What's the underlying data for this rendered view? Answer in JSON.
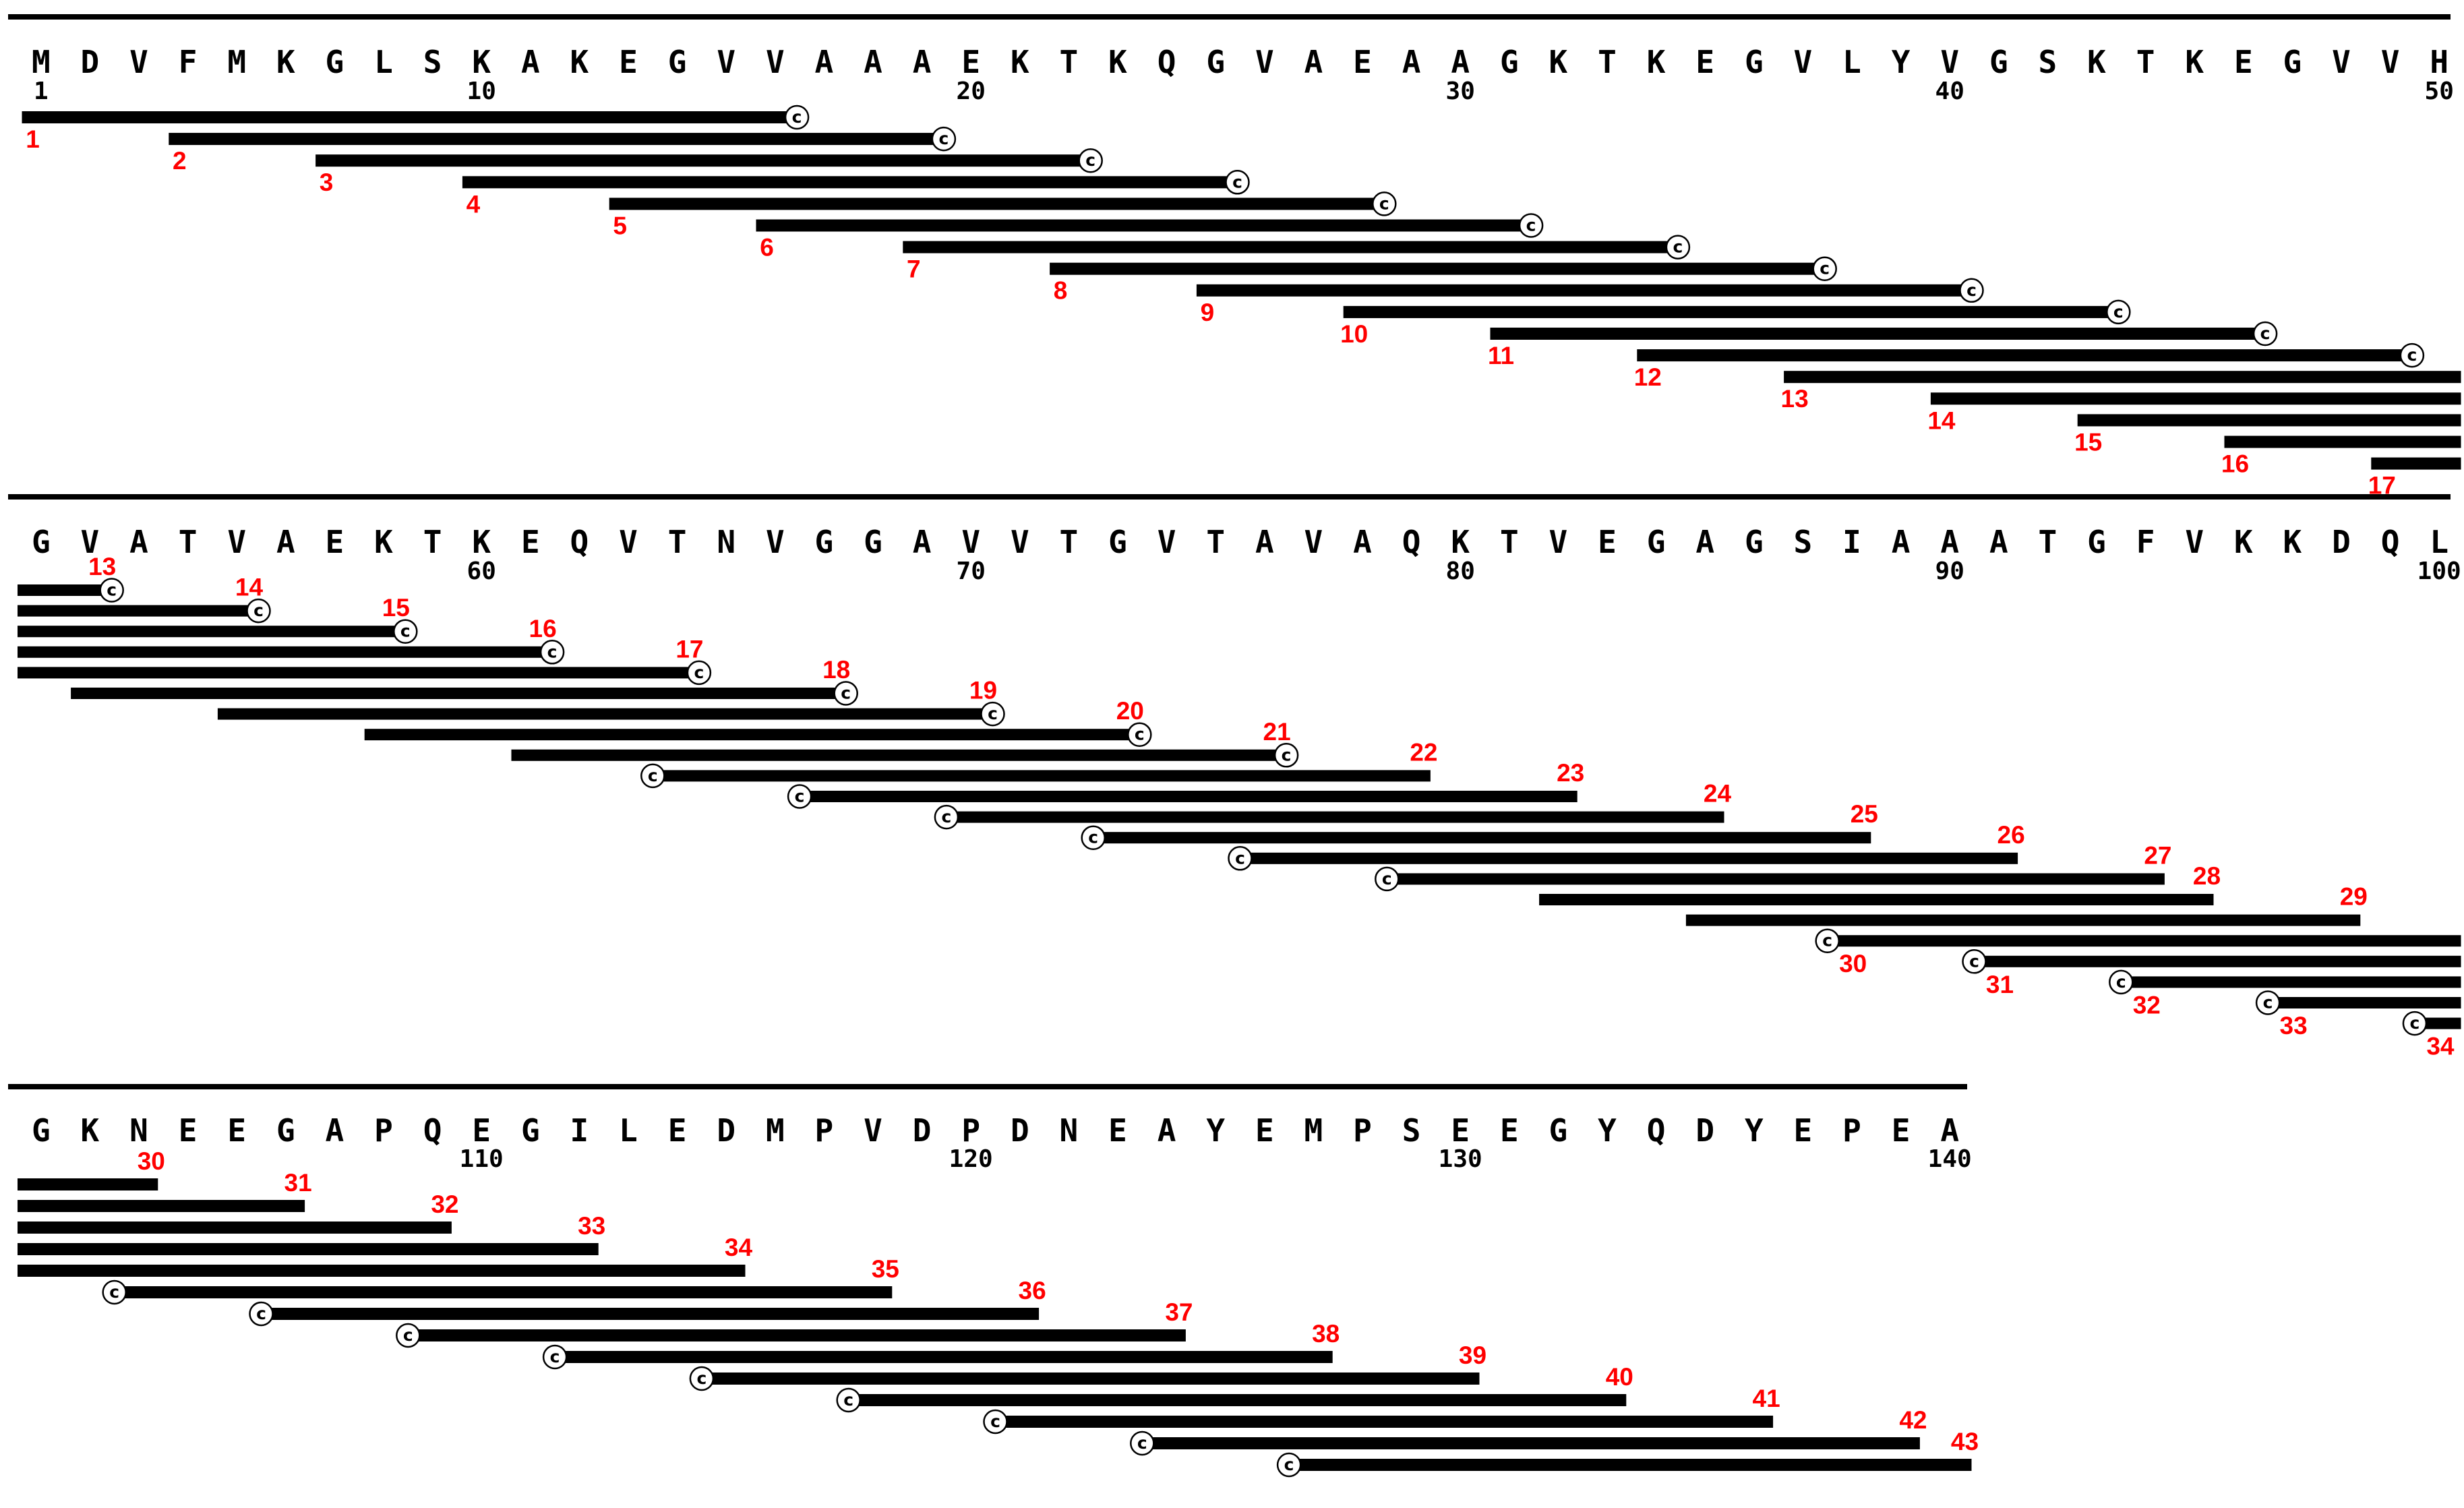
{
  "sequence": "MDVFMKGLSKAKEGVVAAAEKTKQGVAEAAGKTKEGVLYVGSKTKEGVVHGVATVAEKTKEQVTNVGGAVVTGVTAVAQKTVEGAGSIAAATGFVKKDQLGKNEEGAPQEGILEDMPVDPDNEAYEMPSEEGYQDYEPEA",
  "c_mark_text": "c",
  "rows": [
    {
      "first_residue": 1,
      "last_residue": 50,
      "position_labels": [
        "1",
        "10",
        "20",
        "30",
        "40",
        "50"
      ],
      "peptides": [
        {
          "label": "1",
          "start": 1,
          "end": 16,
          "c_end": "right"
        },
        {
          "label": "2",
          "start": 4,
          "end": 19,
          "c_end": "right"
        },
        {
          "label": "3",
          "start": 7,
          "end": 22,
          "c_end": "right"
        },
        {
          "label": "4",
          "start": 10,
          "end": 25,
          "c_end": "right"
        },
        {
          "label": "5",
          "start": 13,
          "end": 28,
          "c_end": "right"
        },
        {
          "label": "6",
          "start": 16,
          "end": 31,
          "c_end": "right"
        },
        {
          "label": "7",
          "start": 19,
          "end": 34,
          "c_end": "right"
        },
        {
          "label": "8",
          "start": 22,
          "end": 37,
          "c_end": "right"
        },
        {
          "label": "9",
          "start": 25,
          "end": 40,
          "c_end": "right"
        },
        {
          "label": "10",
          "start": 28,
          "end": 43,
          "c_end": "right"
        },
        {
          "label": "11",
          "start": 31,
          "end": 46,
          "c_end": "right"
        },
        {
          "label": "12",
          "start": 34,
          "end": 49,
          "c_end": "right"
        },
        {
          "label": "13",
          "start": 37,
          "end": 50,
          "c_end": "none"
        },
        {
          "label": "14",
          "start": 40,
          "end": 50,
          "c_end": "none"
        },
        {
          "label": "15",
          "start": 43,
          "end": 50,
          "c_end": "none"
        },
        {
          "label": "16",
          "start": 46,
          "end": 50,
          "c_end": "none"
        },
        {
          "label": "17",
          "start": 49,
          "end": 50,
          "c_end": "none"
        }
      ]
    },
    {
      "first_residue": 51,
      "last_residue": 100,
      "position_labels": [
        "60",
        "70",
        "80",
        "90",
        "100"
      ],
      "peptides": [
        {
          "label": "13",
          "start": 51,
          "end": 52,
          "c_end": "right"
        },
        {
          "label": "14",
          "start": 51,
          "end": 55,
          "c_end": "right"
        },
        {
          "label": "15",
          "start": 51,
          "end": 58,
          "c_end": "right"
        },
        {
          "label": "16",
          "start": 51,
          "end": 61,
          "c_end": "right"
        },
        {
          "label": "17",
          "start": 51,
          "end": 64,
          "c_end": "right"
        },
        {
          "label": "18",
          "start": 52,
          "end": 67,
          "c_end": "right"
        },
        {
          "label": "19",
          "start": 55,
          "end": 70,
          "c_end": "right"
        },
        {
          "label": "20",
          "start": 58,
          "end": 73,
          "c_end": "right"
        },
        {
          "label": "21",
          "start": 61,
          "end": 76,
          "c_end": "right"
        },
        {
          "label": "22",
          "start": 64,
          "end": 79,
          "c_end": "left"
        },
        {
          "label": "23",
          "start": 67,
          "end": 82,
          "c_end": "left"
        },
        {
          "label": "24",
          "start": 70,
          "end": 85,
          "c_end": "left"
        },
        {
          "label": "25",
          "start": 73,
          "end": 88,
          "c_end": "left"
        },
        {
          "label": "26",
          "start": 76,
          "end": 91,
          "c_end": "left"
        },
        {
          "label": "27",
          "start": 79,
          "end": 94,
          "c_end": "left"
        },
        {
          "label": "28",
          "start": 82,
          "end": 95,
          "c_end": "none"
        },
        {
          "label": "29",
          "start": 85,
          "end": 98,
          "c_end": "none"
        },
        {
          "label": "30",
          "start": 88,
          "end": 100,
          "c_end": "left"
        },
        {
          "label": "31",
          "start": 91,
          "end": 100,
          "c_end": "left"
        },
        {
          "label": "32",
          "start": 94,
          "end": 100,
          "c_end": "left"
        },
        {
          "label": "33",
          "start": 97,
          "end": 100,
          "c_end": "left"
        },
        {
          "label": "34",
          "start": 100,
          "end": 100,
          "c_end": "left"
        }
      ]
    },
    {
      "first_residue": 101,
      "last_residue": 140,
      "position_labels": [
        "110",
        "120",
        "130",
        "140"
      ],
      "peptides": [
        {
          "label": "30",
          "start": 101,
          "end": 103,
          "c_end": "none"
        },
        {
          "label": "31",
          "start": 101,
          "end": 106,
          "c_end": "none"
        },
        {
          "label": "32",
          "start": 101,
          "end": 109,
          "c_end": "none"
        },
        {
          "label": "33",
          "start": 101,
          "end": 112,
          "c_end": "none"
        },
        {
          "label": "34",
          "start": 101,
          "end": 115,
          "c_end": "none"
        },
        {
          "label": "35",
          "start": 103,
          "end": 118,
          "c_end": "left"
        },
        {
          "label": "36",
          "start": 106,
          "end": 121,
          "c_end": "left"
        },
        {
          "label": "37",
          "start": 109,
          "end": 124,
          "c_end": "left"
        },
        {
          "label": "38",
          "start": 112,
          "end": 127,
          "c_end": "left"
        },
        {
          "label": "39",
          "start": 115,
          "end": 130,
          "c_end": "left"
        },
        {
          "label": "40",
          "start": 118,
          "end": 133,
          "c_end": "left"
        },
        {
          "label": "41",
          "start": 121,
          "end": 136,
          "c_end": "left"
        },
        {
          "label": "42",
          "start": 124,
          "end": 139,
          "c_end": "left"
        },
        {
          "label": "43",
          "start": 127,
          "end": 140,
          "c_end": "left"
        }
      ]
    }
  ]
}
